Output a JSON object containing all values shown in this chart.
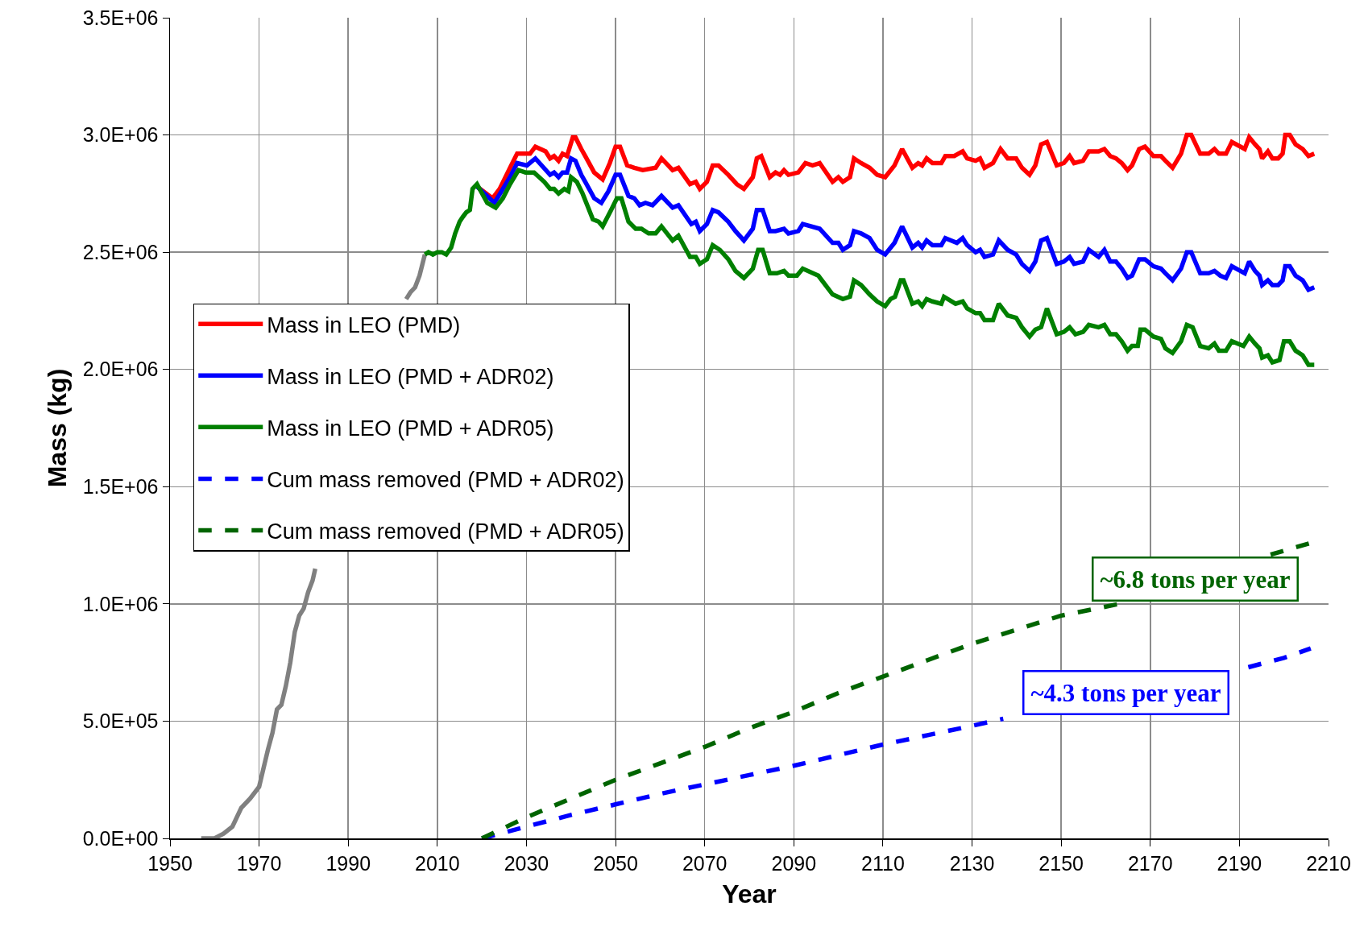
{
  "chart_data": {
    "type": "line",
    "xlabel": "Year",
    "ylabel": "Mass (kg)",
    "xlim": [
      1950,
      2210
    ],
    "xticks": [
      1950,
      1970,
      1990,
      2010,
      2030,
      2050,
      2070,
      2090,
      2110,
      2130,
      2150,
      2170,
      2190,
      2210
    ],
    "ylim": [
      0,
      3500000
    ],
    "yticks": [
      {
        "value": 0,
        "label": "0.0E+00"
      },
      {
        "value": 500000,
        "label": "5.0E+05"
      },
      {
        "value": 1000000,
        "label": "1.0E+06"
      },
      {
        "value": 1500000,
        "label": "1.5E+06"
      },
      {
        "value": 2000000,
        "label": "2.0E+06"
      },
      {
        "value": 2500000,
        "label": "2.5E+06"
      },
      {
        "value": 3000000,
        "label": "3.0E+06"
      },
      {
        "value": 3500000,
        "label": "3.5E+06"
      }
    ],
    "grid": true,
    "legend": "left",
    "marker": "none",
    "series": [
      {
        "color": "#808080",
        "line_style": "solid",
        "x": [
          1957,
          1960,
          1962,
          1964,
          1966,
          1968,
          1970,
          1971,
          1972,
          1973,
          1974,
          1975,
          1976,
          1977,
          1978,
          1979,
          1980,
          1981,
          1982,
          1982.6,
          1993,
          2003,
          2004,
          2005,
          2006,
          2007.2
        ],
        "values": [
          0,
          0,
          20000.0,
          50000.0,
          130000.0,
          170000.0,
          220000.0,
          300000.0,
          380000.0,
          450000.0,
          550000.0,
          570000.0,
          650000.0,
          750000.0,
          880000.0,
          950000.0,
          980000.0,
          1050000.0,
          1100000.0,
          1150000.0,
          null,
          2300000.0,
          2330000.0,
          2350000.0,
          2400000.0,
          2490000.0
        ]
      },
      {
        "name": "Mass in LEO (PMD)",
        "color": "#ff0000",
        "line_style": "solid",
        "x": [
          2018.9,
          2022.4,
          2024,
          2026.3,
          2027.9,
          2030.8,
          2032,
          2034.3,
          2035.3,
          2036.2,
          2037.2,
          2038.1,
          2039.1,
          2040.4,
          2041,
          2042.3,
          2043.2,
          2045.2,
          2047.1,
          2048.7,
          2050,
          2051,
          2052.6,
          2054.2,
          2056.1,
          2059,
          2060.3,
          2062.8,
          2064.1,
          2066.7,
          2068,
          2068.9,
          2070.5,
          2071.8,
          2073.1,
          2075.3,
          2077.2,
          2078.8,
          2080.8,
          2081.7,
          2082.7,
          2084.6,
          2085.9,
          2086.9,
          2087.8,
          2088.8,
          2091,
          2092.6,
          2094.2,
          2095.8,
          2098.7,
          2100,
          2101,
          2102.6,
          2103.5,
          2105.1,
          2107,
          2108.7,
          2110.5,
          2112.6,
          2114.3,
          2116.6,
          2117.9,
          2118.8,
          2119.8,
          2121.1,
          2123.1,
          2124,
          2126,
          2127.9,
          2128.9,
          2130.8,
          2131.8,
          2132.8,
          2134.7,
          2136.4,
          2138,
          2139.9,
          2141.2,
          2142.9,
          2144.2,
          2145.5,
          2146.8,
          2149,
          2150.6,
          2151.9,
          2152.9,
          2154.9,
          2156.2,
          2158.4,
          2159.7,
          2161,
          2162.3,
          2163.6,
          2164.9,
          2165.9,
          2167.5,
          2168.8,
          2170.7,
          2172.4,
          2173.4,
          2175,
          2176.9,
          2178.2,
          2179.2,
          2181.2,
          2183.1,
          2184.4,
          2185.4,
          2187,
          2188.3,
          2191.2,
          2192.2,
          2193.5,
          2194.5,
          2195.1,
          2196.4,
          2197.4,
          2198.7,
          2199.7,
          2200.3,
          2201.3,
          2202.6,
          2204.2,
          2205.5,
          2206.8
        ],
        "values": [
          2780000.0,
          2730000.0,
          2770000.0,
          2860000.0,
          2920000.0,
          2920000.0,
          2950000.0,
          2930000.0,
          2900000.0,
          2910000.0,
          2890000.0,
          2920000.0,
          2910000.0,
          2990000.0,
          2990000.0,
          2940000.0,
          2910000.0,
          2840000.0,
          2810000.0,
          2880000.0,
          2950000.0,
          2950000.0,
          2870000.0,
          2860000.0,
          2850000.0,
          2860000.0,
          2900000.0,
          2850000.0,
          2860000.0,
          2790000.0,
          2800000.0,
          2770000.0,
          2800000.0,
          2870000.0,
          2870000.0,
          2830000.0,
          2790000.0,
          2770000.0,
          2820000.0,
          2900000.0,
          2910000.0,
          2820000.0,
          2840000.0,
          2830000.0,
          2850000.0,
          2830000.0,
          2840000.0,
          2880000.0,
          2870000.0,
          2880000.0,
          2800000.0,
          2820000.0,
          2800000.0,
          2820000.0,
          2900000.0,
          2880000.0,
          2860000.0,
          2830000.0,
          2820000.0,
          2870000.0,
          2940000.0,
          2860000.0,
          2880000.0,
          2870000.0,
          2900000.0,
          2880000.0,
          2880000.0,
          2910000.0,
          2910000.0,
          2930000.0,
          2900000.0,
          2890000.0,
          2900000.0,
          2860000.0,
          2880000.0,
          2940000.0,
          2900000.0,
          2900000.0,
          2860000.0,
          2830000.0,
          2870000.0,
          2960000.0,
          2970000.0,
          2870000.0,
          2880000.0,
          2910000.0,
          2880000.0,
          2890000.0,
          2930000.0,
          2930000.0,
          2940000.0,
          2910000.0,
          2900000.0,
          2880000.0,
          2850000.0,
          2870000.0,
          2940000.0,
          2950000.0,
          2910000.0,
          2910000.0,
          2890000.0,
          2860000.0,
          2920000.0,
          3000000.0,
          3000000.0,
          2920000.0,
          2920000.0,
          2940000.0,
          2920000.0,
          2920000.0,
          2970000.0,
          2940000.0,
          2990000.0,
          2960000.0,
          2940000.0,
          2900000.0,
          2930000.0,
          2900000.0,
          2900000.0,
          2920000.0,
          3000000.0,
          3000000.0,
          2960000.0,
          2940000.0,
          2910000.0,
          2920000.0
        ]
      },
      {
        "name": "Mass in LEO (PMD + ADR02)",
        "color": "#0000ff",
        "line_style": "solid",
        "x": [
          2018.9,
          2022.8,
          2024.4,
          2026.3,
          2027.9,
          2030.1,
          2032,
          2035.3,
          2036.2,
          2037.2,
          2038.1,
          2039.1,
          2040,
          2041,
          2042.3,
          2043.2,
          2045.2,
          2046.8,
          2048.4,
          2050,
          2051,
          2052.9,
          2054.2,
          2055.4,
          2056.7,
          2058.3,
          2060.3,
          2062.8,
          2064.1,
          2067,
          2068,
          2068.9,
          2070.5,
          2071.8,
          2073.1,
          2075.3,
          2076.9,
          2078.8,
          2080.8,
          2081.7,
          2083,
          2084.6,
          2085.9,
          2087.8,
          2088.8,
          2091,
          2092,
          2095.8,
          2098.7,
          2100,
          2101,
          2102.6,
          2103.5,
          2105.1,
          2107,
          2108.7,
          2110.5,
          2112.6,
          2114.3,
          2116.6,
          2117.9,
          2118.8,
          2119.8,
          2121.1,
          2123.1,
          2124,
          2126.6,
          2127.9,
          2128.9,
          2130.8,
          2131.8,
          2132.8,
          2134.7,
          2136,
          2138,
          2139.9,
          2141.2,
          2142.9,
          2144.2,
          2145.5,
          2146.8,
          2149,
          2150.6,
          2151.9,
          2152.9,
          2154.9,
          2156.2,
          2158.4,
          2159.7,
          2161,
          2162.3,
          2163.6,
          2164.9,
          2165.9,
          2167.5,
          2168.8,
          2170.7,
          2172.4,
          2173.4,
          2175,
          2176.9,
          2178.2,
          2179.2,
          2181.2,
          2183.1,
          2184.4,
          2185.7,
          2187,
          2188.3,
          2191.2,
          2192.2,
          2193.5,
          2194.5,
          2195.1,
          2196.4,
          2197.4,
          2198.7,
          2199.7,
          2200.3,
          2201.3,
          2202.6,
          2204.2,
          2205.5,
          2206.8
        ],
        "values": [
          2780000.0,
          2710000.0,
          2760000.0,
          2820000.0,
          2880000.0,
          2870000.0,
          2900000.0,
          2830000.0,
          2840000.0,
          2820000.0,
          2840000.0,
          2840000.0,
          2900000.0,
          2890000.0,
          2830000.0,
          2800000.0,
          2730000.0,
          2710000.0,
          2760000.0,
          2830000.0,
          2830000.0,
          2740000.0,
          2730000.0,
          2700000.0,
          2710000.0,
          2700000.0,
          2740000.0,
          2690000.0,
          2700000.0,
          2620000.0,
          2630000.0,
          2590000.0,
          2620000.0,
          2680000.0,
          2670000.0,
          2630000.0,
          2590000.0,
          2550000.0,
          2600000.0,
          2680000.0,
          2680000.0,
          2590000.0,
          2590000.0,
          2600000.0,
          2580000.0,
          2590000.0,
          2620000.0,
          2600000.0,
          2540000.0,
          2540000.0,
          2510000.0,
          2530000.0,
          2590000.0,
          2580000.0,
          2560000.0,
          2510000.0,
          2490000.0,
          2540000.0,
          2610000.0,
          2520000.0,
          2540000.0,
          2520000.0,
          2550000.0,
          2530000.0,
          2530000.0,
          2560000.0,
          2540000.0,
          2560000.0,
          2530000.0,
          2500000.0,
          2510000.0,
          2480000.0,
          2490000.0,
          2550000.0,
          2510000.0,
          2490000.0,
          2450000.0,
          2420000.0,
          2460000.0,
          2550000.0,
          2560000.0,
          2450000.0,
          2460000.0,
          2480000.0,
          2450000.0,
          2460000.0,
          2510000.0,
          2480000.0,
          2510000.0,
          2460000.0,
          2460000.0,
          2430000.0,
          2390000.0,
          2400000.0,
          2470000.0,
          2470000.0,
          2440000.0,
          2430000.0,
          2410000.0,
          2380000.0,
          2430000.0,
          2500000.0,
          2500000.0,
          2410000.0,
          2410000.0,
          2420000.0,
          2400000.0,
          2390000.0,
          2440000.0,
          2410000.0,
          2460000.0,
          2420000.0,
          2400000.0,
          2360000.0,
          2380000.0,
          2360000.0,
          2360000.0,
          2380000.0,
          2440000.0,
          2440000.0,
          2400000.0,
          2380000.0,
          2340000.0,
          2350000.0
        ]
      },
      {
        "name": "Mass in LEO (PMD + ADR05)",
        "color": "#008000",
        "line_style": "solid",
        "x": [
          2007.2,
          2008,
          2009,
          2010,
          2011,
          2012,
          2013.1,
          2014,
          2015,
          2015.7,
          2016.5,
          2017.3,
          2017.9,
          2018.9,
          2021.2,
          2023.1,
          2024.7,
          2026.3,
          2028.2,
          2029.8,
          2031.7,
          2034,
          2035.3,
          2036.2,
          2037.2,
          2038.5,
          2039.4,
          2040,
          2041.3,
          2042.6,
          2044.9,
          2046.2,
          2047.1,
          2049,
          2050.3,
          2051.3,
          2052.9,
          2054.5,
          2055.8,
          2057.4,
          2059,
          2060.3,
          2062.8,
          2064.1,
          2066.7,
          2068,
          2068.9,
          2070.5,
          2071.8,
          2073.4,
          2075.3,
          2076.9,
          2078.8,
          2080.8,
          2082,
          2083,
          2084.6,
          2086.2,
          2087.8,
          2088.8,
          2090.7,
          2092,
          2095.5,
          2098.7,
          2101,
          2102.6,
          2103.5,
          2105.1,
          2107,
          2108.7,
          2110.5,
          2111.7,
          2112.7,
          2114,
          2114.6,
          2116.6,
          2117.9,
          2118.8,
          2119.8,
          2121.1,
          2123.1,
          2123.7,
          2126.3,
          2127.9,
          2128.9,
          2130.8,
          2131.8,
          2132.8,
          2134.7,
          2136,
          2138,
          2139.9,
          2141.2,
          2142.9,
          2144.2,
          2145.5,
          2146.8,
          2149,
          2150.6,
          2151.9,
          2153.2,
          2154.9,
          2156.2,
          2158.4,
          2159.7,
          2161,
          2162.3,
          2163.6,
          2164.9,
          2165.9,
          2167.2,
          2167.8,
          2168.8,
          2170.7,
          2172.4,
          2173.4,
          2175,
          2176.9,
          2178.2,
          2179.5,
          2181.2,
          2183.1,
          2184.4,
          2185.4,
          2187,
          2188.3,
          2190.9,
          2192.2,
          2193.5,
          2194.5,
          2195.1,
          2196.4,
          2197.4,
          2199,
          2200,
          2201.3,
          2202.6,
          2204.2,
          2205.5,
          2206.8
        ],
        "values": [
          2490000.0,
          2500000.0,
          2490000.0,
          2500000.0,
          2500000.0,
          2490000.0,
          2520000.0,
          2580000.0,
          2630000.0,
          2650000.0,
          2670000.0,
          2680000.0,
          2770000.0,
          2790000.0,
          2710000.0,
          2690000.0,
          2730000.0,
          2790000.0,
          2850000.0,
          2840000.0,
          2840000.0,
          2800000.0,
          2770000.0,
          2770000.0,
          2750000.0,
          2770000.0,
          2760000.0,
          2820000.0,
          2800000.0,
          2750000.0,
          2640000.0,
          2630000.0,
          2610000.0,
          2680000.0,
          2730000.0,
          2730000.0,
          2630000.0,
          2600000.0,
          2600000.0,
          2580000.0,
          2580000.0,
          2610000.0,
          2550000.0,
          2570000.0,
          2480000.0,
          2480000.0,
          2450000.0,
          2470000.0,
          2530000.0,
          2510000.0,
          2470000.0,
          2420000.0,
          2390000.0,
          2430000.0,
          2510000.0,
          2510000.0,
          2410000.0,
          2410000.0,
          2420000.0,
          2400000.0,
          2400000.0,
          2430000.0,
          2400000.0,
          2320000.0,
          2300000.0,
          2310000.0,
          2380000.0,
          2360000.0,
          2320000.0,
          2290000.0,
          2270000.0,
          2300000.0,
          2310000.0,
          2380000.0,
          2380000.0,
          2280000.0,
          2290000.0,
          2270000.0,
          2300000.0,
          2290000.0,
          2280000.0,
          2310000.0,
          2280000.0,
          2290000.0,
          2260000.0,
          2240000.0,
          2240000.0,
          2210000.0,
          2210000.0,
          2280000.0,
          2230000.0,
          2220000.0,
          2180000.0,
          2140000.0,
          2170000.0,
          2180000.0,
          2260000.0,
          2150000.0,
          2160000.0,
          2180000.0,
          2150000.0,
          2160000.0,
          2190000.0,
          2180000.0,
          2190000.0,
          2150000.0,
          2150000.0,
          2120000.0,
          2080000.0,
          2100000.0,
          2100000.0,
          2170000.0,
          2170000.0,
          2140000.0,
          2130000.0,
          2090000.0,
          2070000.0,
          2120000.0,
          2190000.0,
          2180000.0,
          2100000.0,
          2090000.0,
          2110000.0,
          2080000.0,
          2080000.0,
          2120000.0,
          2100000.0,
          2140000.0,
          2110000.0,
          2090000.0,
          2050000.0,
          2060000.0,
          2030000.0,
          2040000.0,
          2120000.0,
          2120000.0,
          2080000.0,
          2060000.0,
          2020000.0,
          2020000.0
        ]
      },
      {
        "name": "Cum mass removed (PMD + ADR02)",
        "color": "#0000ff",
        "line_style": "dashed",
        "x": [
          2020,
          2030,
          2040,
          2050,
          2060,
          2070,
          2080,
          2090,
          2100,
          2110,
          2120,
          2130,
          2137,
          2160,
          2192,
          2200,
          2206
        ],
        "values": [
          0,
          50000.0,
          100000.0,
          145000.0,
          190000.0,
          230000.0,
          270000.0,
          310000.0,
          355000.0,
          400000.0,
          440000.0,
          480000.0,
          510000.0,
          null,
          730000.0,
          770000.0,
          810000.0
        ]
      },
      {
        "name": "Cum mass removed (PMD + ADR05)",
        "color": "#006400",
        "line_style": "dashed",
        "x": [
          2020,
          2030,
          2040,
          2050,
          2060,
          2070,
          2080,
          2090,
          2100,
          2110,
          2120,
          2130,
          2140,
          2150,
          2163,
          2180,
          2197,
          2206
        ],
        "values": [
          0,
          90000.0,
          170000.0,
          250000.0,
          320000.0,
          390000.0,
          470000.0,
          540000.0,
          620000.0,
          690000.0,
          760000.0,
          830000.0,
          890000.0,
          950000.0,
          1000000.0,
          null,
          1210000.0,
          1260000.0
        ]
      }
    ],
    "annotations": [
      "~6.8 tons per year",
      "~4.3 tons per year"
    ]
  }
}
